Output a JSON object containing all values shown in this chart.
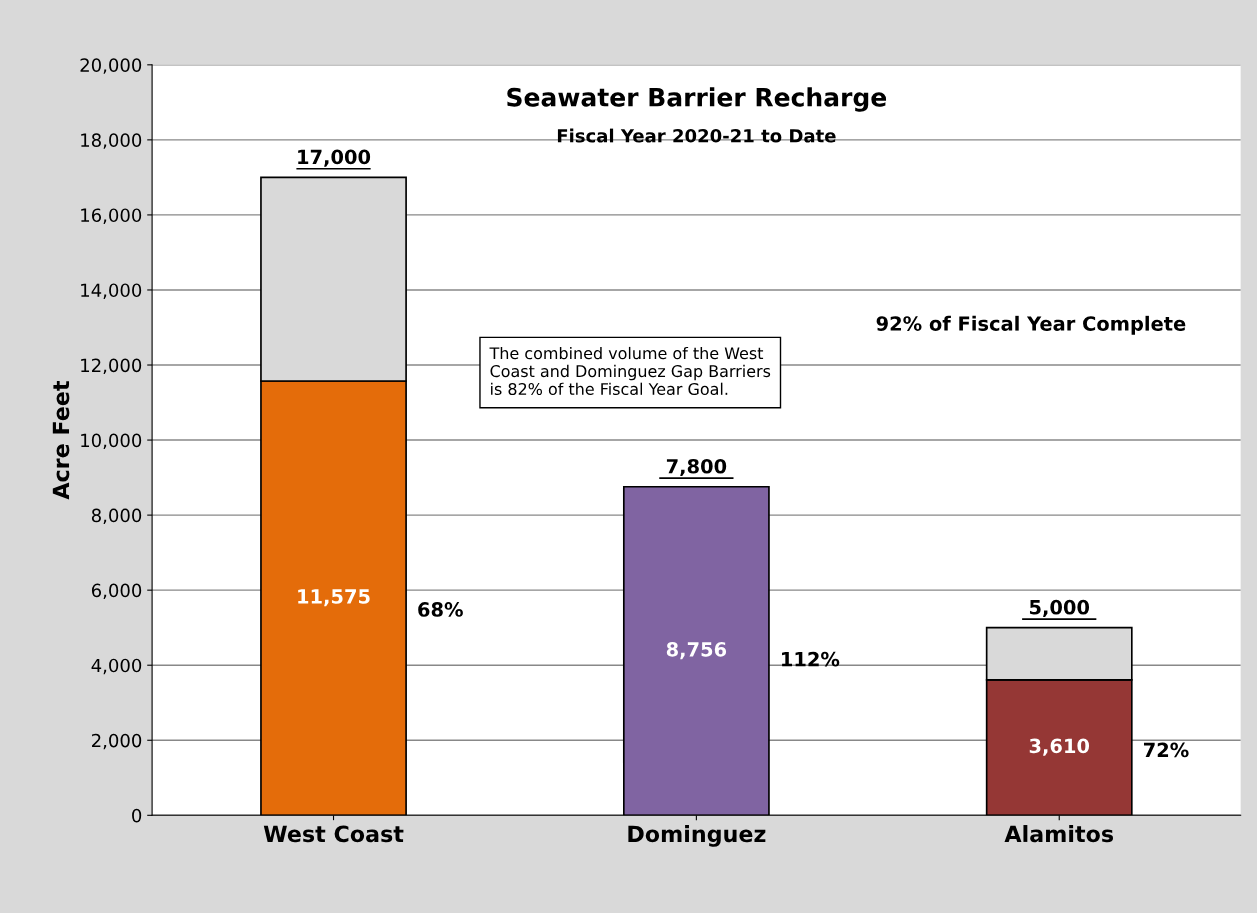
{
  "chart_data": {
    "type": "bar",
    "title": "Seawater Barrier Recharge",
    "subtitle": "Fiscal Year 2020-21 to Date",
    "ylabel": "Acre Feet",
    "categories": [
      "West Coast",
      "Dominguez",
      "Alamitos"
    ],
    "stacked": true,
    "series": [
      {
        "colors": [
          "#e46c0a",
          "#8064a2",
          "#953735"
        ],
        "values": [
          11575,
          8756,
          3610
        ],
        "value_labels": [
          "11,575",
          "8,756",
          "3,610"
        ]
      },
      {
        "color": "#d9d9d9",
        "values": [
          5425,
          null,
          1390
        ]
      }
    ],
    "ylim": [
      0,
      20000
    ],
    "yticks": [
      {
        "value": 0,
        "label": "0"
      },
      {
        "value": 2000,
        "label": "2,000"
      },
      {
        "value": 4000,
        "label": "4,000"
      },
      {
        "value": 6000,
        "label": "6,000"
      },
      {
        "value": 8000,
        "label": "8,000"
      },
      {
        "value": 10000,
        "label": "10,000"
      },
      {
        "value": 12000,
        "label": "12,000"
      },
      {
        "value": 14000,
        "label": "14,000"
      },
      {
        "value": 16000,
        "label": "16,000"
      },
      {
        "value": 18000,
        "label": "18,000"
      },
      {
        "value": 20000,
        "label": "20,000"
      }
    ],
    "grid": "y",
    "annotations": [
      "68%",
      "112%",
      "72%",
      "17,000",
      "7,800",
      "5,000",
      "92% of Fiscal Year Complete",
      "The combined volume of the West\nCoast and Dominguez Gap Barriers\nis 82% of the Fiscal Year Goal."
    ]
  }
}
